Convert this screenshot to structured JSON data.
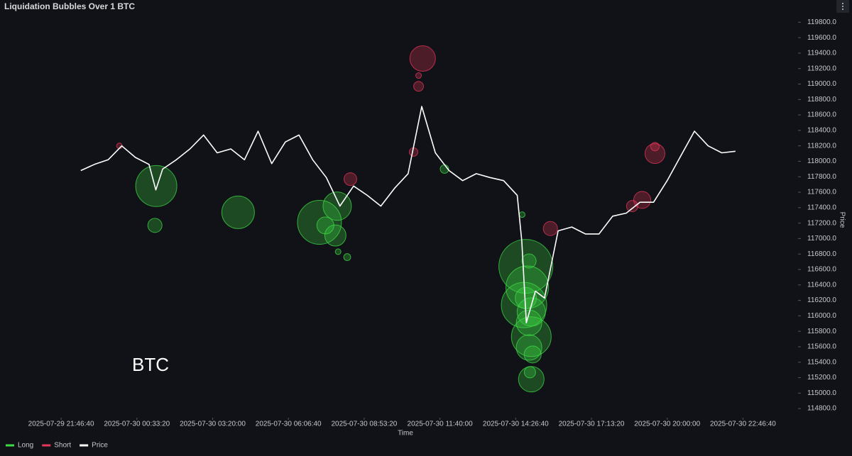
{
  "chart_data": {
    "type": "bubble",
    "title": "Liquidation Bubbles Over 1 BTC",
    "watermark": "BTC",
    "x_label": "Time",
    "y_label": "Price",
    "xlim": [
      "2025-07-29 19:40:00",
      "2025-07-31 00:40:00"
    ],
    "xticks": [
      "2025-07-29 21:46:40",
      "2025-07-30 00:33:20",
      "2025-07-30 03:20:00",
      "2025-07-30 06:06:40",
      "2025-07-30 08:53:20",
      "2025-07-30 11:40:00",
      "2025-07-30 14:26:40",
      "2025-07-30 17:13:20",
      "2025-07-30 20:00:00",
      "2025-07-30 22:46:40"
    ],
    "ylim": [
      114700,
      119950
    ],
    "yticks": [
      {
        "value": 114800,
        "label": "114800.0"
      },
      {
        "value": 115000,
        "label": "115000.0"
      },
      {
        "value": 115200,
        "label": "115200.0"
      },
      {
        "value": 115400,
        "label": "115400.0"
      },
      {
        "value": 115600,
        "label": "115600.0"
      },
      {
        "value": 115800,
        "label": "115800.0"
      },
      {
        "value": 116000,
        "label": "116000.0"
      },
      {
        "value": 116200,
        "label": "116200.0"
      },
      {
        "value": 116400,
        "label": "116400.0"
      },
      {
        "value": 116600,
        "label": "116600.0"
      },
      {
        "value": 116800,
        "label": "116800.0"
      },
      {
        "value": 117000,
        "label": "117000.0"
      },
      {
        "value": 117200,
        "label": "117200.0"
      },
      {
        "value": 117400,
        "label": "117400.0"
      },
      {
        "value": 117600,
        "label": "117600.0"
      },
      {
        "value": 117800,
        "label": "117800.0"
      },
      {
        "value": 118000,
        "label": "118000.0"
      },
      {
        "value": 118200,
        "label": "118200.0"
      },
      {
        "value": 118400,
        "label": "118400.0"
      },
      {
        "value": 118600,
        "label": "118600.0"
      },
      {
        "value": 118800,
        "label": "118800.0"
      },
      {
        "value": 119000,
        "label": "119000.0"
      },
      {
        "value": 119200,
        "label": "119200.0"
      },
      {
        "value": 119400,
        "label": "119400.0"
      },
      {
        "value": 119600,
        "label": "119600.0"
      },
      {
        "value": 119800,
        "label": "119800.0"
      }
    ],
    "legend": "bottom-left",
    "series": [
      {
        "name": "Long",
        "color": "#3ddc45",
        "x": [
          "2025-07-30 01:16:00",
          "2025-07-30 01:13:00",
          "2025-07-30 04:16:00",
          "2025-07-30 07:15:00",
          "2025-07-30 07:54:00",
          "2025-07-30 07:50:00",
          "2025-07-30 07:28:00",
          "2025-07-30 07:56:00",
          "2025-07-30 08:16:00",
          "2025-07-30 11:50:00",
          "2025-07-30 14:41:00",
          "2025-07-30 14:49:00",
          "2025-07-30 14:52:00",
          "2025-07-30 14:45:00",
          "2025-07-30 15:01:00",
          "2025-07-30 14:56:00",
          "2025-07-30 15:01:00",
          "2025-07-30 14:56:00",
          "2025-07-30 15:04:00",
          "2025-07-30 14:58:00",
          "2025-07-30 15:01:00",
          "2025-07-30 14:49:00",
          "2025-07-30 14:56:00"
        ],
        "values": [
          117680,
          117170,
          117340,
          117210,
          117420,
          117040,
          117170,
          116830,
          116760,
          117900,
          117310,
          116640,
          116370,
          116140,
          116050,
          115910,
          115730,
          115590,
          115500,
          115270,
          115180,
          116230,
          116710
        ],
        "sizes": [
          210,
          25,
          132,
          240,
          100,
          56,
          36,
          4,
          6,
          9,
          4,
          361,
          225,
          256,
          100,
          81,
          196,
          81,
          36,
          16,
          81,
          56,
          25
        ]
      },
      {
        "name": "Short",
        "color": "#e8365a",
        "x": [
          "2025-07-30 11:02:00",
          "2025-07-30 10:53:00",
          "2025-07-30 10:53:00",
          "2025-07-30 10:42:00",
          "2025-07-30 08:23:00",
          "2025-07-29 23:55:00",
          "2025-07-30 15:43:00",
          "2025-07-30 19:33:00",
          "2025-07-30 19:33:00",
          "2025-07-30 19:05:00",
          "2025-07-30 18:43:00"
        ],
        "values": [
          119330,
          119110,
          118970,
          118120,
          117770,
          118200,
          117130,
          118100,
          118190,
          117500,
          117420
        ],
        "sizes": [
          81,
          4,
          12,
          9,
          20,
          4,
          25,
          49,
          9,
          36,
          16
        ]
      },
      {
        "name": "Price",
        "color": "#ffffff",
        "type": "line",
        "x": [
          "2025-07-29 22:30:00",
          "2025-07-29 23:00:00",
          "2025-07-29 23:30:00",
          "2025-07-30 00:00:00",
          "2025-07-30 00:30:00",
          "2025-07-30 01:00:00",
          "2025-07-30 01:15:00",
          "2025-07-30 01:30:00",
          "2025-07-30 02:00:00",
          "2025-07-30 02:30:00",
          "2025-07-30 03:00:00",
          "2025-07-30 03:30:00",
          "2025-07-30 04:00:00",
          "2025-07-30 04:30:00",
          "2025-07-30 05:00:00",
          "2025-07-30 05:30:00",
          "2025-07-30 06:00:00",
          "2025-07-30 06:30:00",
          "2025-07-30 07:00:00",
          "2025-07-30 07:30:00",
          "2025-07-30 08:00:00",
          "2025-07-30 08:30:00",
          "2025-07-30 09:00:00",
          "2025-07-30 09:30:00",
          "2025-07-30 10:00:00",
          "2025-07-30 10:30:00",
          "2025-07-30 11:00:00",
          "2025-07-30 11:30:00",
          "2025-07-30 12:00:00",
          "2025-07-30 12:30:00",
          "2025-07-30 13:00:00",
          "2025-07-30 13:30:00",
          "2025-07-30 14:00:00",
          "2025-07-30 14:30:00",
          "2025-07-30 14:40:00",
          "2025-07-30 14:50:00",
          "2025-07-30 15:10:00",
          "2025-07-30 15:30:00",
          "2025-07-30 16:00:00",
          "2025-07-30 16:30:00",
          "2025-07-30 17:00:00",
          "2025-07-30 17:30:00",
          "2025-07-30 18:00:00",
          "2025-07-30 18:30:00",
          "2025-07-30 19:00:00",
          "2025-07-30 19:30:00",
          "2025-07-30 20:00:00",
          "2025-07-30 20:30:00",
          "2025-07-30 21:00:00",
          "2025-07-30 21:30:00",
          "2025-07-30 22:00:00",
          "2025-07-30 22:30:00"
        ],
        "values": [
          117880,
          117960,
          118020,
          118200,
          118050,
          117960,
          117630,
          117900,
          118020,
          118160,
          118340,
          118110,
          118160,
          118020,
          118390,
          117970,
          118250,
          118340,
          118020,
          117790,
          117420,
          117680,
          117560,
          117420,
          117650,
          117840,
          118710,
          118110,
          117880,
          117750,
          117840,
          117790,
          117750,
          117560,
          116970,
          115910,
          116320,
          116230,
          117100,
          117150,
          117060,
          117060,
          117290,
          117330,
          117470,
          117470,
          117750,
          118070,
          118390,
          118200,
          118110,
          118130
        ]
      }
    ]
  }
}
